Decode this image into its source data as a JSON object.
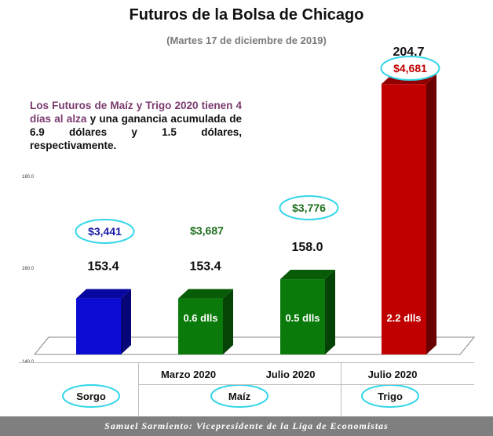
{
  "title": "Futuros de la Bolsa de Chicago",
  "subtitle": "(Martes 17 de diciembre de 2019)",
  "note": {
    "highlight": "Los Futuros de Maíz y Trigo 2020 tienen 4 días al alza",
    "rest": " y una ganancia acumulada de 6.9 dólares y 1.5 dólares, respectivamente."
  },
  "footer": "Samuel Sarmiento: Vicepresidente de la Liga de Economistas",
  "colors": {
    "sorgo": "#0b0bd6",
    "maiz": "#0a7a0a",
    "trigo": "#c00000",
    "price_blue": "#1a1aa8",
    "price_green": "#1e6e1e",
    "price_red": "#c00000",
    "ellipse": "#33d6e8"
  },
  "chart_data": {
    "type": "bar",
    "title": "Futuros de la Bolsa de Chicago",
    "categories": [
      "Sorgo",
      "Marzo 2020",
      "Julio 2020",
      "Julio 2020"
    ],
    "groups": [
      "Sorgo",
      "Maíz",
      "Trigo"
    ],
    "values": [
      153.4,
      153.4,
      158.0,
      204.7
    ],
    "value_labels": [
      "153.4",
      "153.4",
      "158.0",
      "204.7"
    ],
    "price_labels": [
      "$3,441",
      "$3,687",
      "$3,776",
      "$4,681"
    ],
    "gain_labels": [
      "",
      "0.6 dlls",
      "0.5 dlls",
      "2.2 dlls"
    ],
    "y_ticks": [
      "140.0",
      "160.0",
      "180.0"
    ],
    "ylim": [
      140,
      205
    ]
  }
}
